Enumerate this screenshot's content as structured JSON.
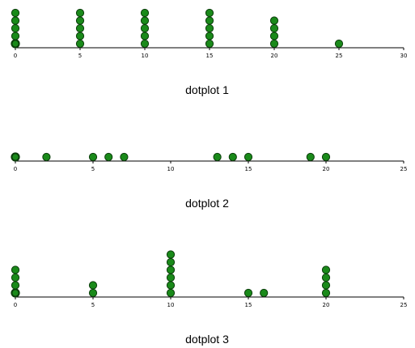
{
  "chart_data": [
    {
      "type": "dotplot",
      "caption": "dotplot 1",
      "xlim": [
        0,
        30
      ],
      "ticks": [
        0,
        5,
        10,
        15,
        20,
        25,
        30
      ],
      "points": [
        {
          "x": 0,
          "count": 5
        },
        {
          "x": 5,
          "count": 5
        },
        {
          "x": 10,
          "count": 5
        },
        {
          "x": 15,
          "count": 5
        },
        {
          "x": 20,
          "count": 4
        },
        {
          "x": 25,
          "count": 1
        }
      ],
      "colors": {
        "dot_fill": "#1a8a1a",
        "dot_stroke": "#0b3d0b"
      }
    },
    {
      "type": "dotplot",
      "caption": "dotplot 2",
      "xlim": [
        0,
        25
      ],
      "ticks": [
        0,
        5,
        10,
        15,
        20,
        25
      ],
      "points": [
        {
          "x": 0,
          "count": 1
        },
        {
          "x": 2,
          "count": 1
        },
        {
          "x": 5,
          "count": 1
        },
        {
          "x": 6,
          "count": 1
        },
        {
          "x": 7,
          "count": 1
        },
        {
          "x": 13,
          "count": 1
        },
        {
          "x": 14,
          "count": 1
        },
        {
          "x": 15,
          "count": 1
        },
        {
          "x": 19,
          "count": 1
        },
        {
          "x": 20,
          "count": 1
        }
      ],
      "colors": {
        "dot_fill": "#1a8a1a",
        "dot_stroke": "#0b3d0b"
      }
    },
    {
      "type": "dotplot",
      "caption": "dotplot 3",
      "xlim": [
        0,
        25
      ],
      "ticks": [
        0,
        5,
        10,
        15,
        20,
        25
      ],
      "points": [
        {
          "x": 0,
          "count": 4
        },
        {
          "x": 5,
          "count": 2
        },
        {
          "x": 10,
          "count": 6
        },
        {
          "x": 15,
          "count": 1
        },
        {
          "x": 16,
          "count": 1
        },
        {
          "x": 20,
          "count": 4
        }
      ],
      "colors": {
        "dot_fill": "#1a8a1a",
        "dot_stroke": "#0b3d0b"
      }
    }
  ]
}
